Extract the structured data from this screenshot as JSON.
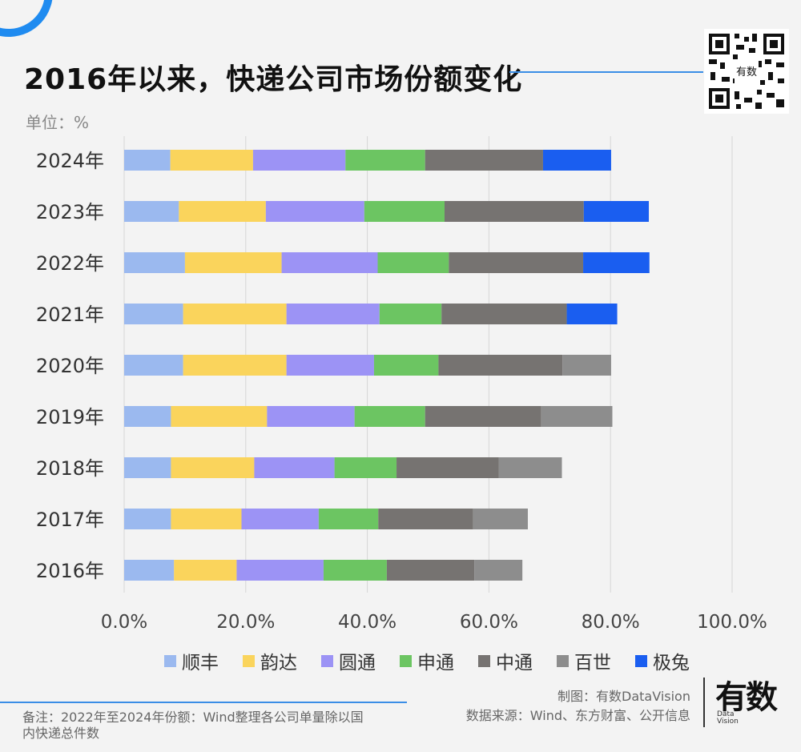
{
  "header": {
    "title": "2016年以来，快递公司市场份额变化",
    "unit": "单位：%"
  },
  "qr_badge": "有数",
  "legend": [
    {
      "name": "顺丰",
      "color": "#9bb9ef"
    },
    {
      "name": "韵达",
      "color": "#fad45c"
    },
    {
      "name": "圆通",
      "color": "#9c93f5"
    },
    {
      "name": "申通",
      "color": "#6cc562"
    },
    {
      "name": "中通",
      "color": "#767371"
    },
    {
      "name": "百世",
      "color": "#8d8d8d"
    },
    {
      "name": "极兔",
      "color": "#1a5ef0"
    }
  ],
  "chart_data": {
    "type": "bar",
    "orientation": "horizontal",
    "stacked": true,
    "categories": [
      "2024年",
      "2023年",
      "2022年",
      "2021年",
      "2020年",
      "2019年",
      "2018年",
      "2017年",
      "2016年"
    ],
    "series": [
      {
        "name": "顺丰",
        "values": [
          7.6,
          9.0,
          10.0,
          9.7,
          9.7,
          7.7,
          7.7,
          7.7,
          8.2
        ]
      },
      {
        "name": "韵达",
        "values": [
          13.6,
          14.3,
          15.9,
          17.0,
          17.0,
          15.8,
          13.7,
          11.6,
          10.3
        ]
      },
      {
        "name": "圆通",
        "values": [
          15.2,
          16.2,
          15.8,
          15.3,
          14.4,
          14.4,
          13.2,
          12.7,
          14.3
        ]
      },
      {
        "name": "申通",
        "values": [
          13.1,
          13.2,
          11.7,
          10.2,
          10.6,
          11.6,
          10.2,
          9.8,
          10.4
        ]
      },
      {
        "name": "中通",
        "values": [
          19.4,
          22.9,
          22.1,
          20.6,
          20.4,
          19.1,
          16.8,
          15.6,
          14.4
        ]
      },
      {
        "name": "百世",
        "values": [
          0,
          0,
          0,
          0,
          8.0,
          11.7,
          10.4,
          9.0,
          7.9
        ]
      },
      {
        "name": "极兔",
        "values": [
          11.2,
          10.7,
          10.9,
          8.3,
          0,
          0,
          0,
          0,
          0
        ]
      }
    ],
    "xlim": [
      0,
      100
    ],
    "xticks": [
      "0.0%",
      "20.0%",
      "40.0%",
      "60.0%",
      "80.0%",
      "100.0%"
    ],
    "grid": "vertical",
    "legend_position": "bottom"
  },
  "footer": {
    "note": "备注：2022年至2024年份额：Wind整理各公司单量除以国内快递总件数",
    "credit_1": "制图：有数DataVision",
    "credit_2": "数据来源：Wind、东方财富、公开信息",
    "brand": "有数",
    "brand_sub_1": "Data",
    "brand_sub_2": "Vision"
  }
}
